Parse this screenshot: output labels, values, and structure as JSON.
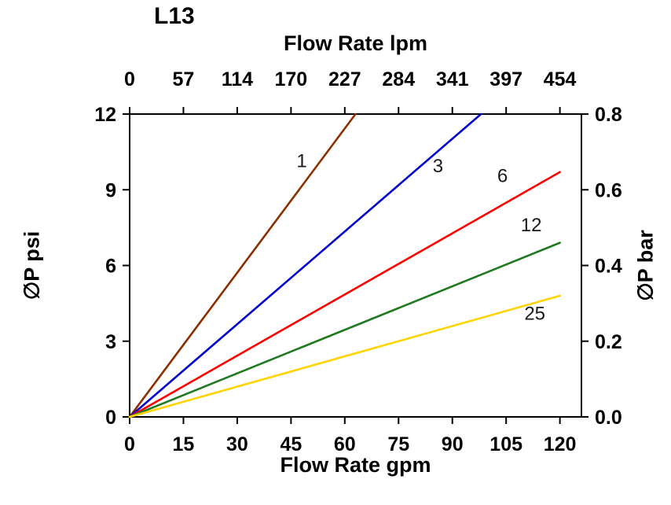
{
  "title": "L13",
  "axes": {
    "top": {
      "label": "Flow Rate lpm",
      "ticks": [
        "0",
        "57",
        "114",
        "170",
        "227",
        "284",
        "341",
        "397",
        "454"
      ]
    },
    "bottom": {
      "label": "Flow Rate gpm",
      "ticks": [
        "0",
        "15",
        "30",
        "45",
        "60",
        "75",
        "90",
        "105",
        "120"
      ]
    },
    "left": {
      "label": "∅P psi",
      "ticks": [
        "0",
        "3",
        "6",
        "9",
        "12"
      ]
    },
    "right": {
      "label": "∅P bar",
      "ticks": [
        "0.0",
        "0.2",
        "0.4",
        "0.6",
        "0.8"
      ]
    }
  },
  "chart_data": {
    "type": "line",
    "title": "L13",
    "xlabel_bottom": "Flow Rate gpm",
    "xlabel_top": "Flow Rate lpm",
    "ylabel_left": "∅P psi",
    "ylabel_right": "∅P bar",
    "x_gpm_ticks": [
      0,
      15,
      30,
      45,
      60,
      75,
      90,
      105,
      120
    ],
    "x_lpm_ticks": [
      0,
      57,
      114,
      170,
      227,
      284,
      341,
      397,
      454
    ],
    "y_psi_ticks": [
      0,
      3,
      6,
      9,
      12
    ],
    "y_bar_ticks": [
      0.0,
      0.2,
      0.4,
      0.6,
      0.8
    ],
    "xlim": [
      0,
      126
    ],
    "ylim": [
      0,
      12
    ],
    "grid": false,
    "legend_position": "inline-labels",
    "series": [
      {
        "name": "1",
        "color": "#8C2E00",
        "points": [
          [
            0,
            0
          ],
          [
            63,
            12
          ]
        ],
        "label_x": 48,
        "label_y": 9.9
      },
      {
        "name": "3",
        "color": "#0000CC",
        "points": [
          [
            0,
            0
          ],
          [
            98,
            12
          ]
        ],
        "label_x": 86,
        "label_y": 9.7
      },
      {
        "name": "6",
        "color": "#FF0000",
        "points": [
          [
            0,
            0
          ],
          [
            120,
            9.7
          ]
        ],
        "label_x": 104,
        "label_y": 9.3
      },
      {
        "name": "12",
        "color": "#1F7A1F",
        "points": [
          [
            0,
            0
          ],
          [
            120,
            6.9
          ]
        ],
        "label_x": 112,
        "label_y": 7.35
      },
      {
        "name": "25",
        "color": "#FFD400",
        "points": [
          [
            0,
            0
          ],
          [
            120,
            4.8
          ]
        ],
        "label_x": 113,
        "label_y": 3.85
      }
    ]
  }
}
